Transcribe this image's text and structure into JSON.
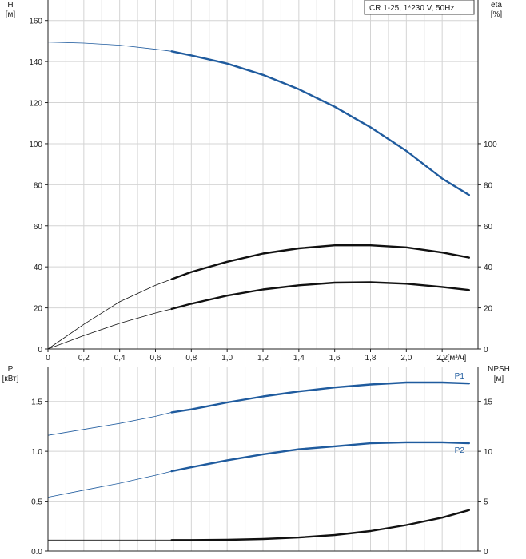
{
  "chart_data": [
    {
      "type": "line",
      "title": "",
      "legend": "CR 1-25, 1*230 V, 50Hz",
      "x_unit_label": "Q [м³/ч]",
      "left_axis": {
        "label": "H",
        "unit": "[м]",
        "ylim": [
          0,
          170
        ],
        "ticks": [
          0,
          20,
          40,
          60,
          80,
          100,
          120,
          140,
          160
        ]
      },
      "right_axis": {
        "label": "eta",
        "unit": "[%]",
        "ylim": [
          0,
          170
        ],
        "ticks": [
          0,
          20,
          40,
          60,
          80,
          100
        ]
      },
      "xlim": [
        0,
        2.4
      ],
      "x_ticks": [
        "0",
        "0,2",
        "0,4",
        "0,6",
        "0,8",
        "1,0",
        "1,2",
        "1,4",
        "1,6",
        "1,8",
        "2,0",
        "2,2"
      ],
      "grid": true,
      "series": [
        {
          "name": "",
          "axis": "left",
          "color": "#1f5b9e",
          "x": [
            0,
            0.2,
            0.4,
            0.6,
            0.69,
            0.8,
            1.0,
            1.2,
            1.4,
            1.6,
            1.8,
            2.0,
            2.2,
            2.35
          ],
          "y": [
            149.5,
            149,
            148,
            146,
            145,
            143,
            139,
            133.5,
            126.5,
            118,
            108,
            96.5,
            83,
            75
          ]
        },
        {
          "name": "",
          "axis": "right",
          "color": "#111111",
          "x": [
            0,
            0.2,
            0.4,
            0.6,
            0.69,
            0.8,
            1.0,
            1.2,
            1.4,
            1.6,
            1.8,
            2.0,
            2.2,
            2.35
          ],
          "y": [
            0,
            12,
            23,
            31,
            34,
            37.5,
            42.5,
            46.5,
            49,
            50.5,
            50.5,
            49.5,
            47,
            44.5
          ]
        },
        {
          "name": "",
          "axis": "right",
          "color": "#111111",
          "x": [
            0,
            0.2,
            0.4,
            0.6,
            0.69,
            0.8,
            1.0,
            1.2,
            1.4,
            1.6,
            1.8,
            2.0,
            2.2,
            2.35
          ],
          "y": [
            0,
            6.5,
            12.5,
            17.5,
            19.5,
            22,
            26,
            29,
            31,
            32.3,
            32.5,
            31.8,
            30.2,
            28.7
          ]
        }
      ]
    },
    {
      "type": "line",
      "title": "",
      "left_axis": {
        "label": "P",
        "unit": "[кВт]",
        "ylim": [
          0,
          1.85
        ],
        "ticks": [
          "0.0",
          "0.5",
          "1.0",
          "1.5"
        ]
      },
      "right_axis": {
        "label": "NPSH",
        "unit": "[м]",
        "ylim": [
          0,
          18.5
        ],
        "ticks": [
          "0",
          "5",
          "10",
          "15"
        ]
      },
      "xlim": [
        0,
        2.4
      ],
      "grid": true,
      "series": [
        {
          "name": "P1",
          "axis": "left",
          "color": "#1f5b9e",
          "x": [
            0,
            0.2,
            0.4,
            0.6,
            0.69,
            0.8,
            1.0,
            1.2,
            1.4,
            1.6,
            1.8,
            2.0,
            2.2,
            2.35
          ],
          "y": [
            1.16,
            1.22,
            1.28,
            1.35,
            1.39,
            1.42,
            1.49,
            1.55,
            1.6,
            1.64,
            1.67,
            1.69,
            1.69,
            1.68
          ]
        },
        {
          "name": "P2",
          "axis": "left",
          "color": "#1f5b9e",
          "x": [
            0,
            0.2,
            0.4,
            0.6,
            0.69,
            0.8,
            1.0,
            1.2,
            1.4,
            1.6,
            1.8,
            2.0,
            2.2,
            2.35
          ],
          "y": [
            0.54,
            0.61,
            0.68,
            0.76,
            0.8,
            0.84,
            0.91,
            0.97,
            1.02,
            1.05,
            1.08,
            1.09,
            1.09,
            1.08
          ]
        },
        {
          "name": "",
          "axis": "right",
          "color": "#111111",
          "x": [
            0,
            0.2,
            0.4,
            0.6,
            0.69,
            0.8,
            1.0,
            1.2,
            1.4,
            1.6,
            1.8,
            2.0,
            2.2,
            2.35
          ],
          "y": [
            1.1,
            1.1,
            1.1,
            1.1,
            1.1,
            1.1,
            1.12,
            1.2,
            1.35,
            1.6,
            2.0,
            2.6,
            3.35,
            4.1
          ]
        }
      ]
    }
  ]
}
